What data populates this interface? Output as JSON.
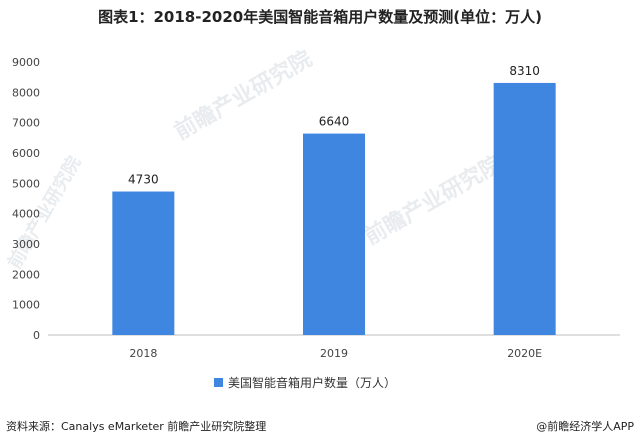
{
  "title": "图表1：2018-2020年美国智能音箱用户数量及预测(单位：万人)",
  "source": "资料来源：Canalys eMarketer 前瞻产业研究院整理",
  "credit": "@前瞻经济学人APP",
  "watermark": "前瞻产业研究院",
  "colors": {
    "bar": "#3f86e0",
    "grid": "#d9d9d9",
    "axis": "#bfbfbf"
  },
  "chart_data": {
    "type": "bar",
    "categories": [
      "2018",
      "2019",
      "2020E"
    ],
    "series": [
      {
        "name": "美国智能音箱用户数量（万人）",
        "values": [
          4730,
          6640,
          8310
        ]
      }
    ],
    "ylim": [
      0,
      9000
    ],
    "yticks": [
      0,
      1000,
      2000,
      3000,
      4000,
      5000,
      6000,
      7000,
      8000,
      9000
    ],
    "grid": false,
    "legend": "bottom",
    "data_labels": [
      "4730",
      "6640",
      "8310"
    ]
  }
}
